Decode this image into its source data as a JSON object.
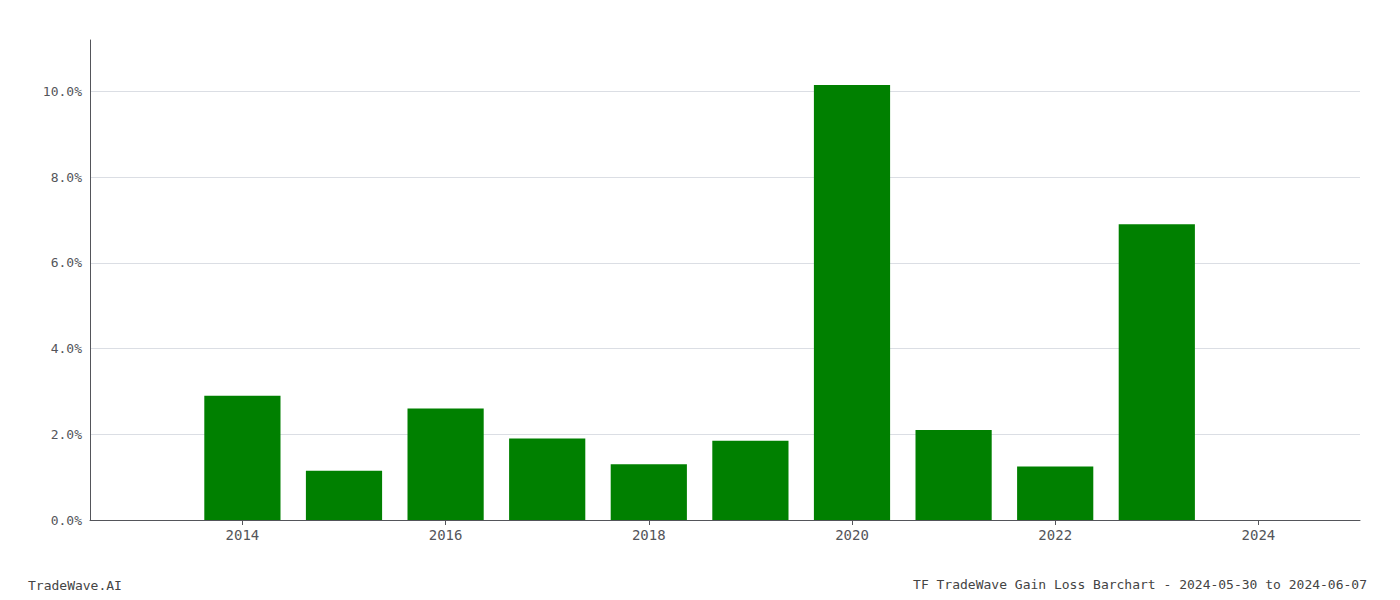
{
  "chart_data": {
    "type": "bar",
    "title": "TF TradeWave Gain Loss Barchart - 2024-05-30 to 2024-06-07",
    "annotations": [
      "TradeWave.AI"
    ],
    "x": [
      2014,
      2015,
      2016,
      2017,
      2018,
      2019,
      2020,
      2021,
      2022,
      2023
    ],
    "values": [
      0.029,
      0.0115,
      0.026,
      0.019,
      0.013,
      0.0185,
      0.1015,
      0.021,
      0.0125,
      0.069
    ],
    "color": "#008000",
    "xlim": [
      2012.5,
      2025.0
    ],
    "xticks": [
      2014,
      2016,
      2018,
      2020,
      2022,
      2024
    ],
    "ylim": [
      0,
      0.112
    ],
    "yticks": [
      {
        "value": 0.0,
        "label": "0.0%"
      },
      {
        "value": 0.02,
        "label": "2.0%"
      },
      {
        "value": 0.04,
        "label": "4.0%"
      },
      {
        "value": 0.06,
        "label": "6.0%"
      },
      {
        "value": 0.08,
        "label": "8.0%"
      },
      {
        "value": 0.1,
        "label": "10.0%"
      }
    ],
    "grid": true
  }
}
